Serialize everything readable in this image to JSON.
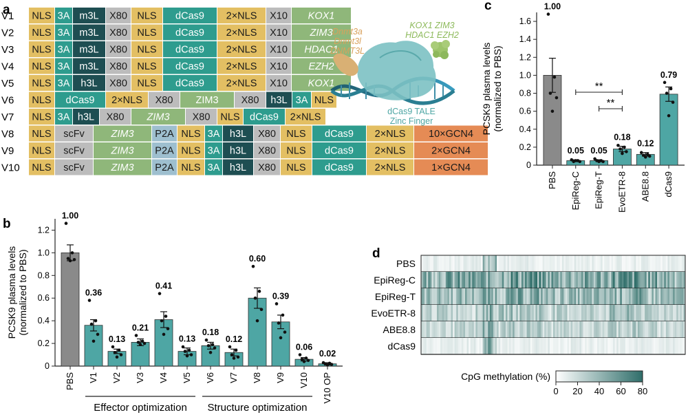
{
  "panels": {
    "a": "a",
    "b": "b",
    "c": "c",
    "d": "d"
  },
  "colors": {
    "NLS": "#E3BF63",
    "3A": "#2E9C8E",
    "L": "#1E4E52",
    "X80": "#BCBCBC",
    "dCas9": "#2E9C8E",
    "XNLS": "#E3BF63",
    "X10": "#BCBCBC",
    "effector": "#8FB77A",
    "scFv": "#BCBCBC",
    "P2A": "#9EBFCF",
    "GCN4": "#E58B55",
    "bar_teal": "#4EA6A4",
    "bar_grey": "#8A8A8A",
    "dnmt_text": "#D9A15C",
    "krab_text": "#8DBA5B",
    "dcas_text": "#4EA6A4"
  },
  "constructs": [
    {
      "name": "V1",
      "segments": [
        [
          "NLS",
          "NLS",
          0
        ],
        [
          "3A",
          "3A",
          0
        ],
        [
          "m3L",
          "L",
          0
        ],
        [
          "X80",
          "X80",
          0
        ],
        [
          "NLS",
          "NLS",
          0
        ],
        [
          "dCas9",
          "dCas9",
          0
        ],
        [
          "2×NLS",
          "XNLS",
          0
        ],
        [
          "X10",
          "X10",
          0
        ],
        [
          "KOX1",
          "effector",
          1
        ]
      ]
    },
    {
      "name": "V2",
      "segments": [
        [
          "NLS",
          "NLS",
          0
        ],
        [
          "3A",
          "3A",
          0
        ],
        [
          "m3L",
          "L",
          0
        ],
        [
          "X80",
          "X80",
          0
        ],
        [
          "NLS",
          "NLS",
          0
        ],
        [
          "dCas9",
          "dCas9",
          0
        ],
        [
          "2×NLS",
          "XNLS",
          0
        ],
        [
          "X10",
          "X10",
          0
        ],
        [
          "ZIM3",
          "effector",
          1
        ]
      ]
    },
    {
      "name": "V3",
      "segments": [
        [
          "NLS",
          "NLS",
          0
        ],
        [
          "3A",
          "3A",
          0
        ],
        [
          "m3L",
          "L",
          0
        ],
        [
          "X80",
          "X80",
          0
        ],
        [
          "NLS",
          "NLS",
          0
        ],
        [
          "dCas9",
          "dCas9",
          0
        ],
        [
          "2×NLS",
          "XNLS",
          0
        ],
        [
          "X10",
          "X10",
          0
        ],
        [
          "HDAC1",
          "effector",
          1
        ]
      ]
    },
    {
      "name": "V4",
      "segments": [
        [
          "NLS",
          "NLS",
          0
        ],
        [
          "3A",
          "3A",
          0
        ],
        [
          "m3L",
          "L",
          0
        ],
        [
          "X80",
          "X80",
          0
        ],
        [
          "NLS",
          "NLS",
          0
        ],
        [
          "dCas9",
          "dCas9",
          0
        ],
        [
          "2×NLS",
          "XNLS",
          0
        ],
        [
          "X10",
          "X10",
          0
        ],
        [
          "EZH2",
          "effector",
          1
        ]
      ]
    },
    {
      "name": "V5",
      "segments": [
        [
          "NLS",
          "NLS",
          0
        ],
        [
          "3A",
          "3A",
          0
        ],
        [
          "h3L",
          "L",
          0
        ],
        [
          "X80",
          "X80",
          0
        ],
        [
          "NLS",
          "NLS",
          0
        ],
        [
          "dCas9",
          "dCas9",
          0
        ],
        [
          "2×NLS",
          "XNLS",
          0
        ],
        [
          "X10",
          "X10",
          0
        ],
        [
          "KOX1",
          "effector",
          1
        ]
      ]
    },
    {
      "name": "V6",
      "segments": [
        [
          "NLS",
          "NLS",
          0
        ],
        [
          "dCas9",
          "dCas9",
          0
        ],
        [
          "2×NLS",
          "XNLS",
          0
        ],
        [
          "X80",
          "X80",
          0
        ],
        [
          "ZIM3",
          "effector",
          0
        ],
        [
          "X80",
          "X80",
          0
        ],
        [
          "h3L",
          "L",
          0
        ],
        [
          "3A",
          "3A",
          0
        ],
        [
          "NLS",
          "NLS",
          0
        ]
      ]
    },
    {
      "name": "V7",
      "segments": [
        [
          "NLS",
          "NLS",
          0
        ],
        [
          "3A",
          "3A",
          0
        ],
        [
          "h3L",
          "L",
          0
        ],
        [
          "X80",
          "X80",
          0
        ],
        [
          "ZIM3",
          "effector",
          1
        ],
        [
          "X80",
          "X80",
          0
        ],
        [
          "NLS",
          "NLS",
          0
        ],
        [
          "dCas9",
          "dCas9",
          0
        ],
        [
          "2×NLS",
          "XNLS",
          0
        ]
      ]
    },
    {
      "name": "V8",
      "segments": [
        [
          "NLS",
          "NLS",
          0
        ],
        [
          "scFv",
          "scFv",
          0
        ],
        [
          "ZIM3",
          "effector",
          1
        ],
        [
          "P2A",
          "P2A",
          0
        ],
        [
          "NLS",
          "NLS",
          0
        ],
        [
          "3A",
          "3A",
          0
        ],
        [
          "h3L",
          "L",
          0
        ],
        [
          "X80",
          "X80",
          0
        ],
        [
          "NLS",
          "NLS",
          0
        ],
        [
          "dCas9",
          "dCas9",
          0
        ],
        [
          "2×NLS",
          "XNLS",
          0
        ],
        [
          "10×GCN4",
          "GCN4",
          0
        ]
      ]
    },
    {
      "name": "V9",
      "segments": [
        [
          "NLS",
          "NLS",
          0
        ],
        [
          "scFv",
          "scFv",
          0
        ],
        [
          "ZIM3",
          "effector",
          1
        ],
        [
          "P2A",
          "P2A",
          0
        ],
        [
          "NLS",
          "NLS",
          0
        ],
        [
          "3A",
          "3A",
          0
        ],
        [
          "h3L",
          "L",
          0
        ],
        [
          "X80",
          "X80",
          0
        ],
        [
          "NLS",
          "NLS",
          0
        ],
        [
          "dCas9",
          "dCas9",
          0
        ],
        [
          "2×NLS",
          "XNLS",
          0
        ],
        [
          "2×GCN4",
          "GCN4",
          0
        ]
      ]
    },
    {
      "name": "V10",
      "segments": [
        [
          "NLS",
          "NLS",
          0
        ],
        [
          "scFv",
          "scFv",
          0
        ],
        [
          "ZIM3",
          "effector",
          1
        ],
        [
          "P2A",
          "P2A",
          0
        ],
        [
          "NLS",
          "NLS",
          0
        ],
        [
          "3A",
          "3A",
          0
        ],
        [
          "h3L",
          "L",
          0
        ],
        [
          "X80",
          "X80",
          0
        ],
        [
          "NLS",
          "NLS",
          0
        ],
        [
          "dCas9",
          "dCas9",
          0
        ],
        [
          "2×NLS",
          "XNLS",
          0
        ],
        [
          "1×GCN4",
          "GCN4",
          0
        ]
      ]
    }
  ],
  "schematic": {
    "dnmt_labels": [
      "Dnmt3a",
      "Dnmt3l",
      "DNMT3L"
    ],
    "krab_labels": [
      "KOX1 ZIM3",
      "HDAC1 EZH2"
    ],
    "dcas_labels": [
      "dCas9 TALE",
      "Zinc Finger"
    ]
  },
  "chart_data": [
    {
      "panel": "b",
      "type": "bar",
      "ylabel": "PCSK9 plasma levels\n(normalized to PBS)",
      "ylim": [
        0,
        1.3
      ],
      "yticks": [
        0,
        0.2,
        0.4,
        0.6,
        0.8,
        1.0,
        1.2
      ],
      "categories": [
        "PBS",
        "V1",
        "V2",
        "V3",
        "V4",
        "V5",
        "V6",
        "V7",
        "V8",
        "V9",
        "V10",
        "V10 OP"
      ],
      "values": [
        1.0,
        0.36,
        0.13,
        0.21,
        0.41,
        0.13,
        0.18,
        0.12,
        0.6,
        0.39,
        0.06,
        0.02
      ],
      "value_labels": [
        "1.00",
        "0.36",
        "0.13",
        "0.21",
        "0.41",
        "0.13",
        "0.18",
        "0.12",
        "0.60",
        "0.39",
        "0.06",
        "0.02"
      ],
      "errors": [
        0.07,
        0.05,
        0.02,
        0.03,
        0.07,
        0.03,
        0.03,
        0.03,
        0.09,
        0.06,
        0.015,
        0.01
      ],
      "points": [
        [
          1.26,
          1.0,
          0.95,
          0.94,
          0.93
        ],
        [
          0.58,
          0.4,
          0.37,
          0.28,
          0.22
        ],
        [
          0.17,
          0.14,
          0.12,
          0.1,
          0.08
        ],
        [
          0.27,
          0.22,
          0.21,
          0.2,
          0.19
        ],
        [
          0.64,
          0.44,
          0.4,
          0.33,
          0.28
        ],
        [
          0.17,
          0.14,
          0.13,
          0.1,
          0.09
        ],
        [
          0.23,
          0.19,
          0.18,
          0.16,
          0.12
        ],
        [
          0.17,
          0.14,
          0.1,
          0.08,
          0.07
        ],
        [
          0.88,
          0.66,
          0.6,
          0.5,
          0.4
        ],
        [
          0.55,
          0.45,
          0.38,
          0.3,
          0.25
        ],
        [
          0.1,
          0.07,
          0.06,
          0.05,
          0.04
        ],
        [
          0.03,
          0.025,
          0.02,
          0.015,
          0.01
        ]
      ],
      "groups": [
        {
          "label": "Effector optimization",
          "from": 1,
          "to": 5
        },
        {
          "label": "Structure optimization",
          "from": 6,
          "to": 10
        }
      ]
    },
    {
      "panel": "c",
      "type": "bar",
      "ylabel": "PCSK9 plasma levels\n(normalized to PBS)",
      "ylim": [
        0,
        1.7
      ],
      "yticks": [
        0,
        0.2,
        0.4,
        0.6,
        0.8,
        1.0,
        1.2,
        1.4,
        1.6
      ],
      "categories": [
        "PBS",
        "EpiReg-C",
        "EpiReg-T",
        "EvoETR-8",
        "ABE8.8",
        "dCas9"
      ],
      "values": [
        1.0,
        0.05,
        0.05,
        0.18,
        0.12,
        0.79
      ],
      "value_labels": [
        "1.00",
        "0.05",
        "0.05",
        "0.18",
        "0.12",
        "0.79"
      ],
      "errors": [
        0.19,
        0.01,
        0.01,
        0.03,
        0.02,
        0.08
      ],
      "points": [
        [
          1.68,
          0.98,
          0.8,
          0.75,
          0.6
        ],
        [
          0.06,
          0.05,
          0.04,
          0.04,
          0.05
        ],
        [
          0.07,
          0.05,
          0.05,
          0.04,
          0.04
        ],
        [
          0.22,
          0.2,
          0.18,
          0.15,
          0.13
        ],
        [
          0.14,
          0.12,
          0.11,
          0.1,
          0.09
        ],
        [
          0.92,
          0.85,
          0.8,
          0.7,
          0.55
        ]
      ],
      "significance": [
        {
          "from": 1,
          "to": 3,
          "label": "**"
        },
        {
          "from": 2,
          "to": 3,
          "label": "**"
        }
      ]
    },
    {
      "panel": "d",
      "type": "heatmap",
      "rows": [
        "PBS",
        "EpiReg-C",
        "EpiReg-T",
        "EvoETR-8",
        "ABE8.8",
        "dCas9"
      ],
      "xlabel": "CpG methylation (%)",
      "colorbar_ticks": [
        0,
        20,
        40,
        60,
        80
      ],
      "range": [
        0,
        80
      ]
    }
  ]
}
